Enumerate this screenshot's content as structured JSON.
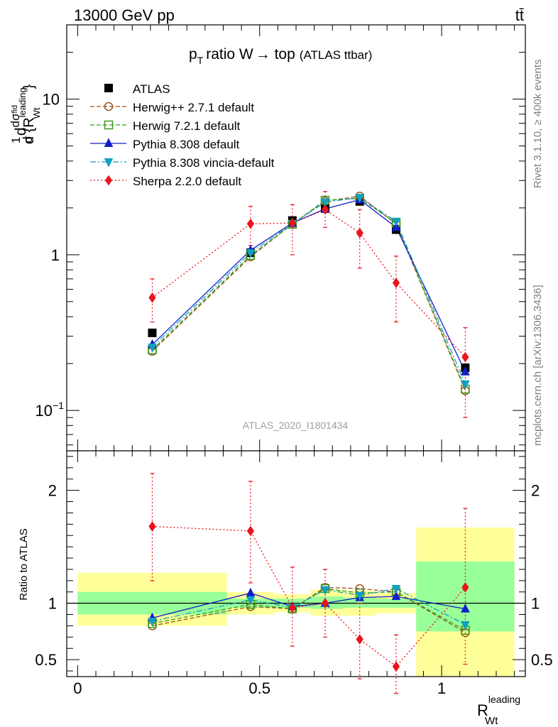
{
  "header": {
    "energy_label": "13000 GeV pp",
    "process_label": "tt̄"
  },
  "side_labels": {
    "rivet": "Rivet 3.1.10, ≥ 400k events",
    "mcplots": "mcplots.cern.ch [arXiv:1306.3436]"
  },
  "watermark": "ATLAS_2020_I1801434",
  "chart_data": [
    {
      "type": "line",
      "panel": "main",
      "title": "p_T ratio W → top (ATLAS ttbar)",
      "title_main": "ratio W",
      "title_arrow": "→",
      "title_top": " top",
      "title_sub": "(ATLAS ttbar)",
      "title_p": "p",
      "title_T": "T",
      "ylabel": "1/σ dσ/d{R_Wt^leading}",
      "yscale": "log",
      "ylim": [
        0.055,
        30
      ],
      "xlim": [
        -0.03,
        1.23
      ],
      "y_ticks": [
        {
          "value": 0.1,
          "label": "10",
          "sup": "−1"
        },
        {
          "value": 1,
          "label": "1",
          "sup": ""
        },
        {
          "value": 10,
          "label": "10",
          "sup": ""
        }
      ],
      "x": [
        0.205,
        0.475,
        0.59,
        0.68,
        0.775,
        0.875,
        1.065
      ],
      "series": [
        {
          "name": "ATLAS",
          "color": "#000000",
          "marker": "square-filled",
          "line": "none",
          "values": [
            0.315,
            1.03,
            1.66,
            1.98,
            2.2,
            1.45,
            0.188
          ]
        },
        {
          "name": "Herwig++ 2.7.1 default",
          "color": "#a0521e",
          "marker": "circle-open",
          "line": "dashed",
          "values": [
            0.24,
            0.97,
            1.58,
            2.21,
            2.38,
            1.58,
            0.134
          ]
        },
        {
          "name": "Herwig 7.2.1 default",
          "color": "#3a9a1a",
          "marker": "square-open",
          "line": "dashed",
          "values": [
            0.245,
            0.99,
            1.57,
            2.24,
            2.3,
            1.6,
            0.137
          ]
        },
        {
          "name": "Pythia 8.308 default",
          "color": "#1020c8",
          "marker": "triangle-up-filled",
          "line": "solid",
          "values": [
            0.265,
            1.07,
            1.6,
            1.97,
            2.26,
            1.5,
            0.177
          ]
        },
        {
          "name": "Pythia 8.308 vincia-default",
          "color": "#10a0c0",
          "marker": "triangle-down-filled",
          "line": "dashdot",
          "values": [
            0.255,
            1.03,
            1.58,
            2.18,
            2.33,
            1.64,
            0.148
          ]
        },
        {
          "name": "Sherpa 2.2.0 default",
          "color": "#e8141e",
          "marker": "diamond-filled",
          "line": "dotted",
          "values": [
            0.53,
            1.58,
            1.6,
            1.95,
            1.38,
            0.66,
            0.22
          ],
          "err_up": [
            0.7,
            2.05,
            2.1,
            2.55,
            1.95,
            0.98,
            0.34
          ],
          "err_down": [
            0.37,
            1.15,
            1.0,
            1.5,
            0.82,
            0.37,
            0.09
          ]
        }
      ]
    },
    {
      "type": "line",
      "panel": "ratio",
      "ylabel": "Ratio to ATLAS",
      "ylim": [
        0.35,
        2.35
      ],
      "xlim": [
        -0.03,
        1.23
      ],
      "x_label": "R",
      "x_label_sub": "Wt",
      "x_label_sup": "leading",
      "x_ticks": [
        {
          "value": 0,
          "label": "0"
        },
        {
          "value": 0.5,
          "label": "0.5"
        },
        {
          "value": 1,
          "label": "1"
        }
      ],
      "y_ticks": [
        {
          "value": 0.5,
          "label": "0.5"
        },
        {
          "value": 1,
          "label": "1"
        },
        {
          "value": 2,
          "label": "2"
        }
      ],
      "bands": [
        {
          "x0": 0.0,
          "x1": 0.41,
          "stat_lo": 0.9,
          "stat_hi": 1.1,
          "tot_lo": 0.8,
          "tot_hi": 1.27
        },
        {
          "x0": 0.41,
          "x1": 0.54,
          "stat_lo": 0.96,
          "stat_hi": 1.04,
          "tot_lo": 0.9,
          "tot_hi": 1.1
        },
        {
          "x0": 0.54,
          "x1": 0.64,
          "stat_lo": 0.96,
          "stat_hi": 1.04,
          "tot_lo": 0.92,
          "tot_hi": 1.08
        },
        {
          "x0": 0.64,
          "x1": 0.73,
          "stat_lo": 0.95,
          "stat_hi": 1.06,
          "tot_lo": 0.89,
          "tot_hi": 1.12
        },
        {
          "x0": 0.73,
          "x1": 0.82,
          "stat_lo": 0.96,
          "stat_hi": 1.05,
          "tot_lo": 0.89,
          "tot_hi": 1.11
        },
        {
          "x0": 0.82,
          "x1": 0.93,
          "stat_lo": 0.96,
          "stat_hi": 1.04,
          "tot_lo": 0.91,
          "tot_hi": 1.09
        },
        {
          "x0": 0.93,
          "x1": 1.2,
          "stat_lo": 0.75,
          "stat_hi": 1.37,
          "tot_lo": 0.35,
          "tot_hi": 1.67
        }
      ],
      "series": [
        {
          "name": "Herwig++ 2.7.1 default",
          "color": "#a0521e",
          "marker": "circle-open",
          "line": "dashed",
          "values": [
            0.8,
            0.97,
            0.95,
            1.14,
            1.13,
            1.1,
            0.74
          ]
        },
        {
          "name": "Herwig 7.2.1 default",
          "color": "#3a9a1a",
          "marker": "square-open",
          "line": "dashed",
          "values": [
            0.82,
            0.99,
            0.95,
            1.13,
            1.09,
            1.1,
            0.76
          ]
        },
        {
          "name": "Pythia 8.308 default",
          "color": "#1020c8",
          "marker": "triangle-up-filled",
          "line": "solid",
          "values": [
            0.87,
            1.09,
            0.97,
            1.0,
            1.05,
            1.06,
            0.95
          ]
        },
        {
          "name": "Pythia 8.308 vincia-default",
          "color": "#10a0c0",
          "marker": "triangle-down-filled",
          "line": "dashdot",
          "values": [
            0.84,
            1.03,
            0.96,
            1.12,
            1.07,
            1.13,
            0.81
          ]
        },
        {
          "name": "Sherpa 2.2.0 default",
          "color": "#e8141e",
          "marker": "diamond-filled",
          "line": "dotted",
          "values": [
            1.68,
            1.64,
            0.96,
            1.0,
            0.68,
            0.44,
            1.14
          ],
          "err_up": [
            2.15,
            2.08,
            1.32,
            1.3,
            1.0,
            0.72,
            1.84
          ],
          "err_down": [
            1.2,
            1.18,
            0.62,
            0.7,
            0.33,
            0.2,
            0.46
          ]
        }
      ]
    }
  ]
}
